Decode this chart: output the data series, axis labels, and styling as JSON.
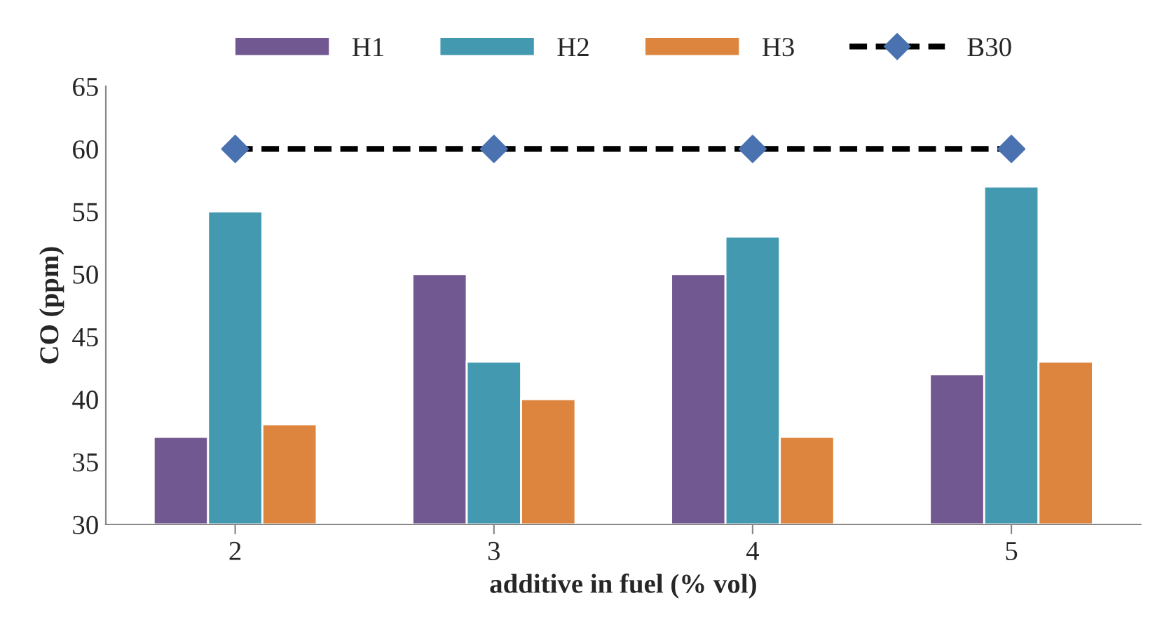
{
  "chart_data": {
    "type": "bar",
    "xlabel": "additive in fuel (% vol)",
    "ylabel": "CO (ppm)",
    "categories": [
      "2",
      "3",
      "4",
      "5"
    ],
    "series": [
      {
        "name": "H1",
        "color": "#725891",
        "values": [
          37,
          50,
          50,
          42
        ]
      },
      {
        "name": "H2",
        "color": "#4299b0",
        "values": [
          55,
          43,
          53,
          57
        ]
      },
      {
        "name": "H3",
        "color": "#dd853e",
        "values": [
          38,
          40,
          37,
          43
        ]
      },
      {
        "name": "B30",
        "type": "line",
        "color": "#000000",
        "marker": "diamond",
        "colors": [
          "#4a72b0",
          "#4a72b0",
          "#4a72b0",
          "#4a72b0"
        ],
        "line_style": "dashed",
        "values": [
          60,
          60,
          60,
          60
        ]
      }
    ],
    "ylim": [
      30,
      65
    ],
    "yticks": [
      30,
      35,
      40,
      45,
      50,
      55,
      60,
      65
    ],
    "grid": false,
    "legend": "top"
  }
}
